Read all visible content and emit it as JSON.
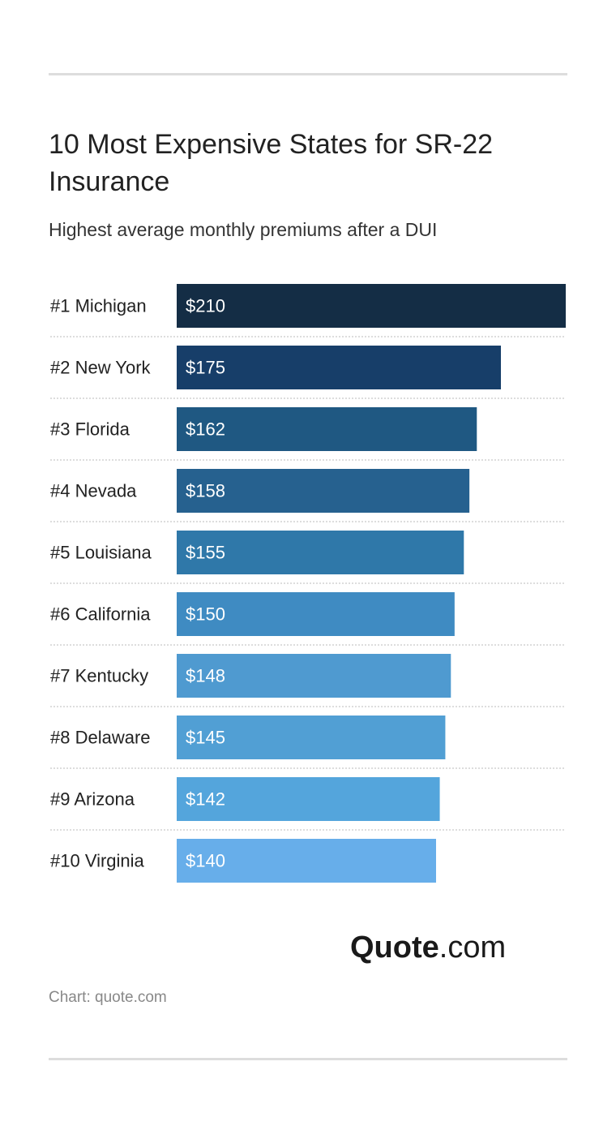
{
  "title": "10 Most Expensive States for SR-22 Insurance",
  "subtitle": "Highest average monthly premiums after a DUI",
  "logo": {
    "brand": "Quote",
    "suffix": ".com"
  },
  "source": "Chart: quote.com",
  "chart_data": {
    "type": "bar",
    "orientation": "horizontal",
    "title": "10 Most Expensive States for SR-22 Insurance",
    "subtitle": "Highest average monthly premiums after a DUI",
    "xlabel": "",
    "ylabel": "",
    "xlim": [
      0,
      210
    ],
    "grid": false,
    "legend": "none",
    "categories": [
      "#1 Michigan",
      "#2 New York",
      "#3 Florida",
      "#4 Nevada",
      "#5 Louisiana",
      "#6 California",
      "#7 Kentucky",
      "#8 Delaware",
      "#9 Arizona",
      "#10 Virginia"
    ],
    "values": [
      210,
      175,
      162,
      158,
      155,
      150,
      148,
      145,
      142,
      140
    ],
    "value_labels": [
      "$210",
      "$175",
      "$162",
      "$158",
      "$155",
      "$150",
      "$148",
      "$145",
      "$142",
      "$140"
    ],
    "colors": [
      "#142d45",
      "#173e69",
      "#1f5882",
      "#26618f",
      "#2f78a9",
      "#3f8bc2",
      "#4f9ad0",
      "#519fd4",
      "#54a5dc",
      "#67aeea"
    ]
  }
}
